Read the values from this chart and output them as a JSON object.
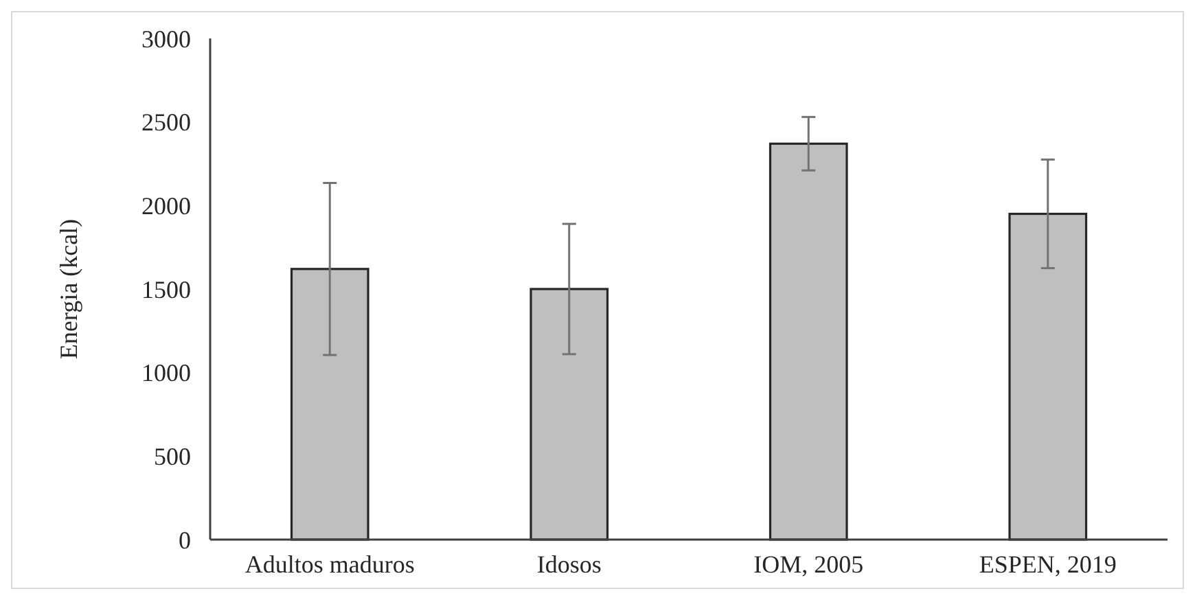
{
  "chart_data": {
    "type": "bar",
    "ylabel": "Energia (kcal)",
    "categories": [
      "Adultos maduros",
      "Idosos",
      "IOM, 2005",
      "ESPEN, 2019"
    ],
    "values": [
      1620,
      1500,
      2370,
      1950
    ],
    "errors": [
      515,
      390,
      160,
      325
    ],
    "color": "#bfbfbf",
    "ylim": [
      0,
      3000
    ],
    "yticks": [
      0,
      500,
      1000,
      1500,
      2000,
      2500,
      3000
    ],
    "grid": false
  }
}
